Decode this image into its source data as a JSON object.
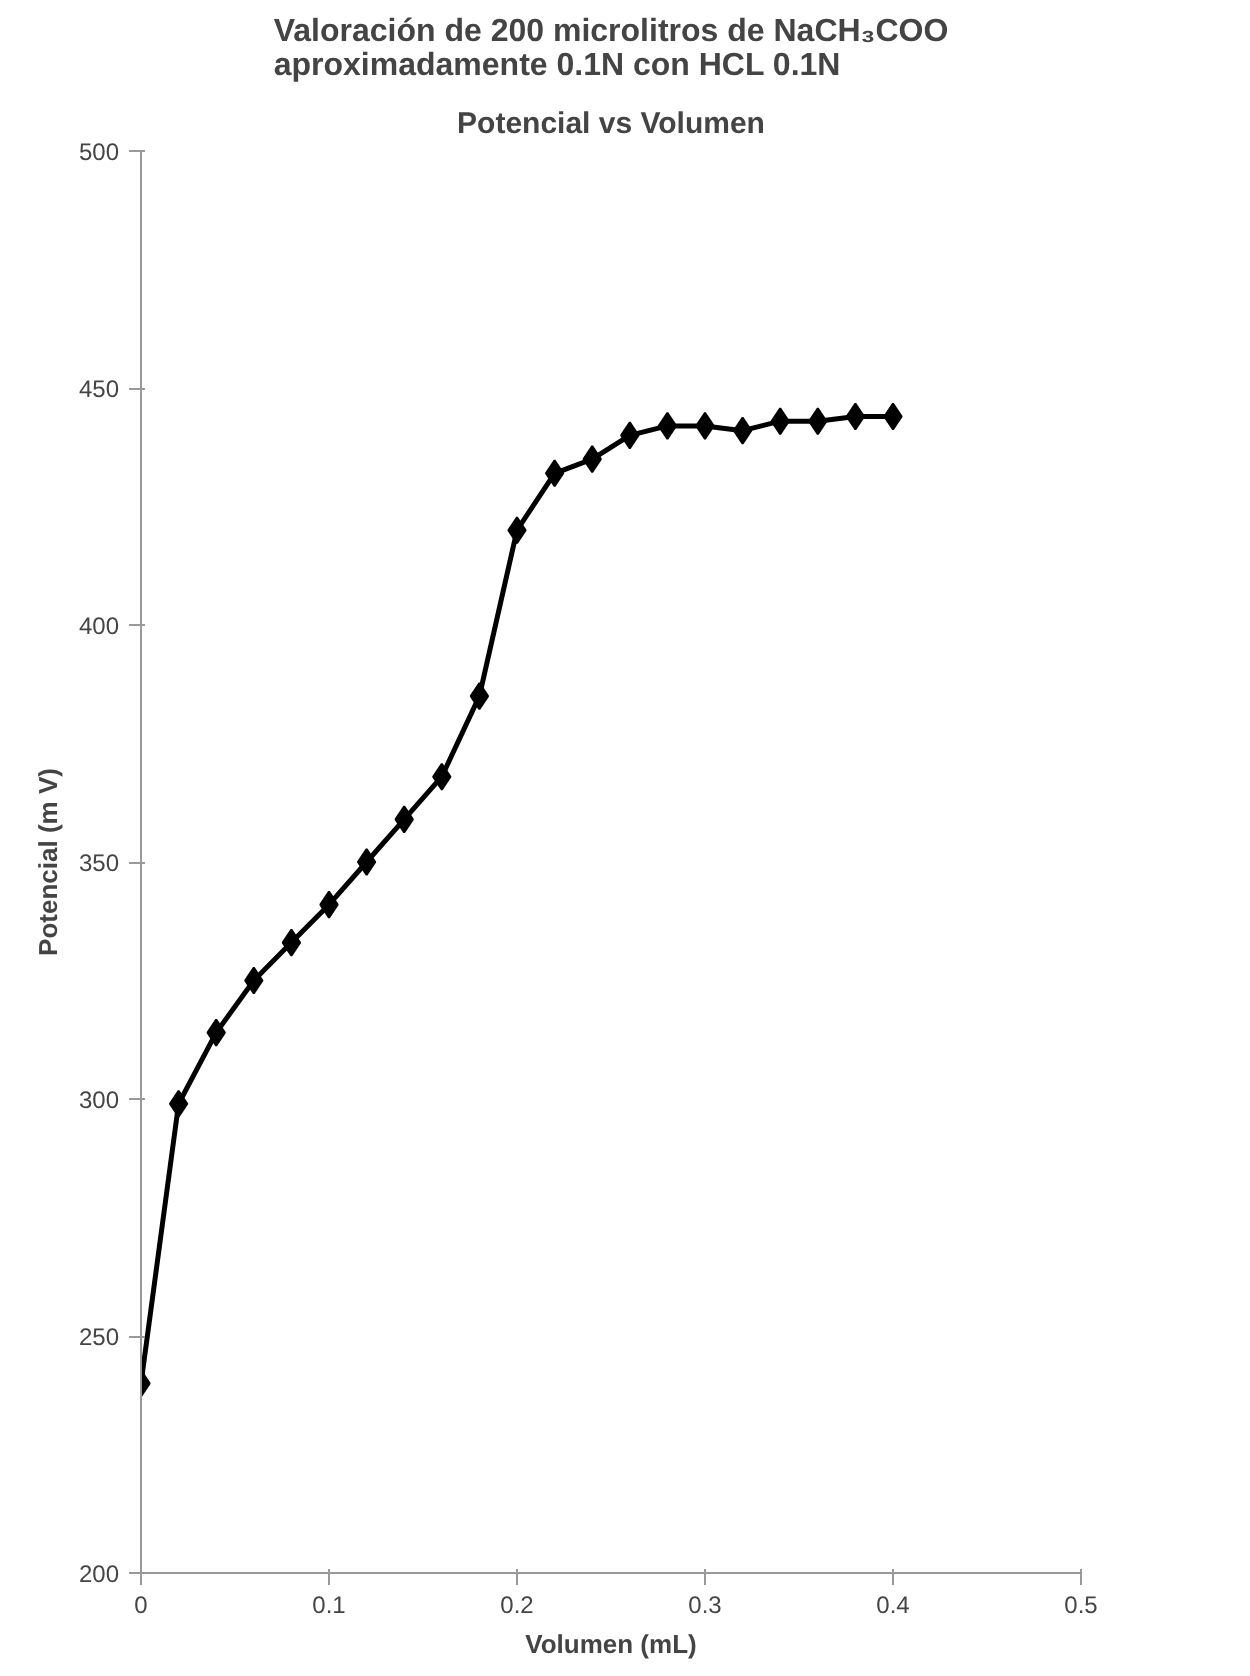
{
  "chart_data": {
    "type": "line",
    "title": "Valoración de 200 microlitros de NaCH₃COO aproximadamente 0.1N con HCL 0.1N",
    "subtitle": "Potencial vs Volumen",
    "xlabel": "Volumen (mL)",
    "ylabel": "Potencial (m V)",
    "x": [
      0,
      0.02,
      0.04,
      0.06,
      0.08,
      0.1,
      0.12,
      0.14,
      0.16,
      0.18,
      0.2,
      0.22,
      0.24,
      0.26,
      0.28,
      0.3,
      0.32,
      0.34,
      0.36,
      0.38,
      0.4
    ],
    "series": [
      {
        "color": "#000000",
        "values": [
          240,
          299,
          314,
          325,
          333,
          341,
          350,
          359,
          368,
          385,
          420,
          432,
          435,
          440,
          442,
          442,
          441,
          443,
          443,
          444,
          444
        ]
      }
    ],
    "xlim": [
      0,
      0.5
    ],
    "ylim": [
      200,
      500
    ],
    "xticks": [
      0,
      0.1,
      0.2,
      0.3,
      0.4,
      0.5
    ],
    "yticks": [
      200,
      250,
      300,
      350,
      400,
      450,
      500
    ],
    "grid": false,
    "marker": "diamond",
    "line_style": "solid"
  }
}
